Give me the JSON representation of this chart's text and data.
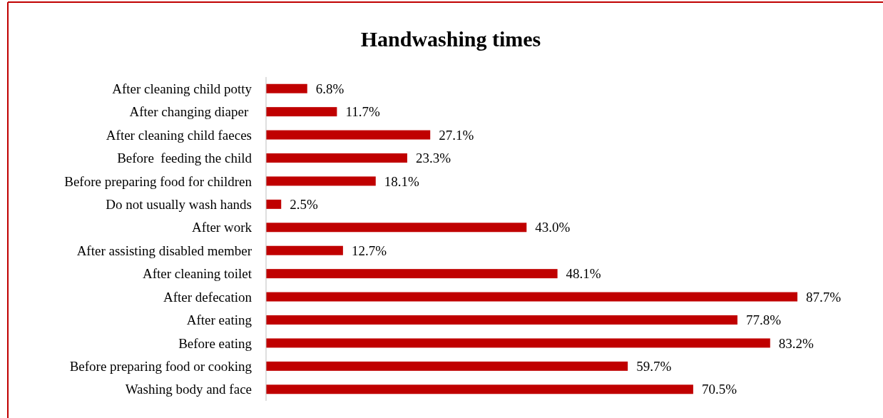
{
  "chart_data": {
    "type": "bar",
    "orientation": "horizontal",
    "title": "Handwashing times",
    "color": "#c00000",
    "categories": [
      "After cleaning child potty",
      "After changing diaper ",
      "After cleaning child faeces",
      "Before  feeding the child",
      "Before preparing food for children",
      "Do not usually wash hands",
      "After work",
      "After assisting disabled member",
      "After cleaning toilet",
      "After defecation",
      "After eating",
      "Before eating",
      "Before preparing food or cooking",
      "Washing body and face"
    ],
    "values": [
      6.8,
      11.7,
      27.1,
      23.3,
      18.1,
      2.5,
      43.0,
      12.7,
      48.1,
      87.7,
      77.8,
      83.2,
      59.7,
      70.5
    ],
    "value_labels": [
      "6.8%",
      "11.7%",
      "27.1%",
      "23.3%",
      "18.1%",
      "2.5%",
      "43.0%",
      "12.7%",
      "48.1%",
      "87.7%",
      "77.8%",
      "83.2%",
      "59.7%",
      "70.5%"
    ],
    "data_labels": false
  }
}
